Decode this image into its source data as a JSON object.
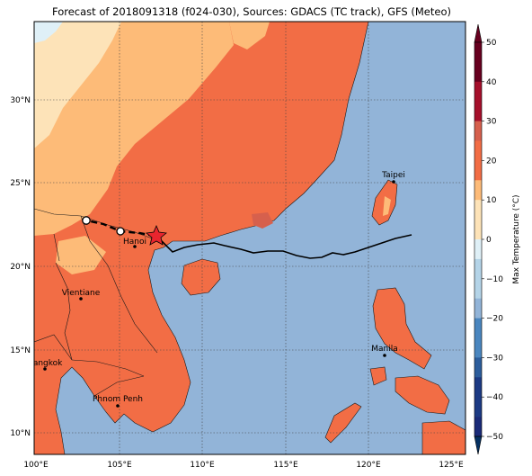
{
  "title": "Forecast of 2018091318 (f024-030), Sources: GDACS (TC track), GFS (Meteo)",
  "axes": {
    "x_ticks": [
      "100°E",
      "105°E",
      "110°E",
      "115°E",
      "120°E",
      "125°E"
    ],
    "y_ticks": [
      "30°N",
      "25°N",
      "20°N",
      "15°N",
      "10°N"
    ]
  },
  "colorbar": {
    "label": "Max Temperature (°C)",
    "ticks": [
      "50",
      "40",
      "30",
      "20",
      "10",
      "0",
      "−10",
      "−20",
      "−30",
      "−40",
      "−50"
    ],
    "colors": [
      "#67001f",
      "#b2182b",
      "#d6604d",
      "#f4a582",
      "#fddbc7",
      "#f7f7f7",
      "#d1e5f0",
      "#92c5de",
      "#4393c3",
      "#2166ac",
      "#053061"
    ]
  },
  "cities": [
    {
      "name": "Taipei"
    },
    {
      "name": "Hanoi"
    },
    {
      "name": "Vientiane"
    },
    {
      "name": "Manila"
    },
    {
      "name": "Bangkok"
    },
    {
      "name": "Phnom Penh"
    }
  ],
  "colors": {
    "ocean": "#92b4d8",
    "land_hot": "#f26d45",
    "land_warm": "#fdbb78",
    "land_mild": "#fde3b8",
    "land_cold": "#dff0f7",
    "track_past": "#000000",
    "storm_marker": "#e8252e"
  }
}
